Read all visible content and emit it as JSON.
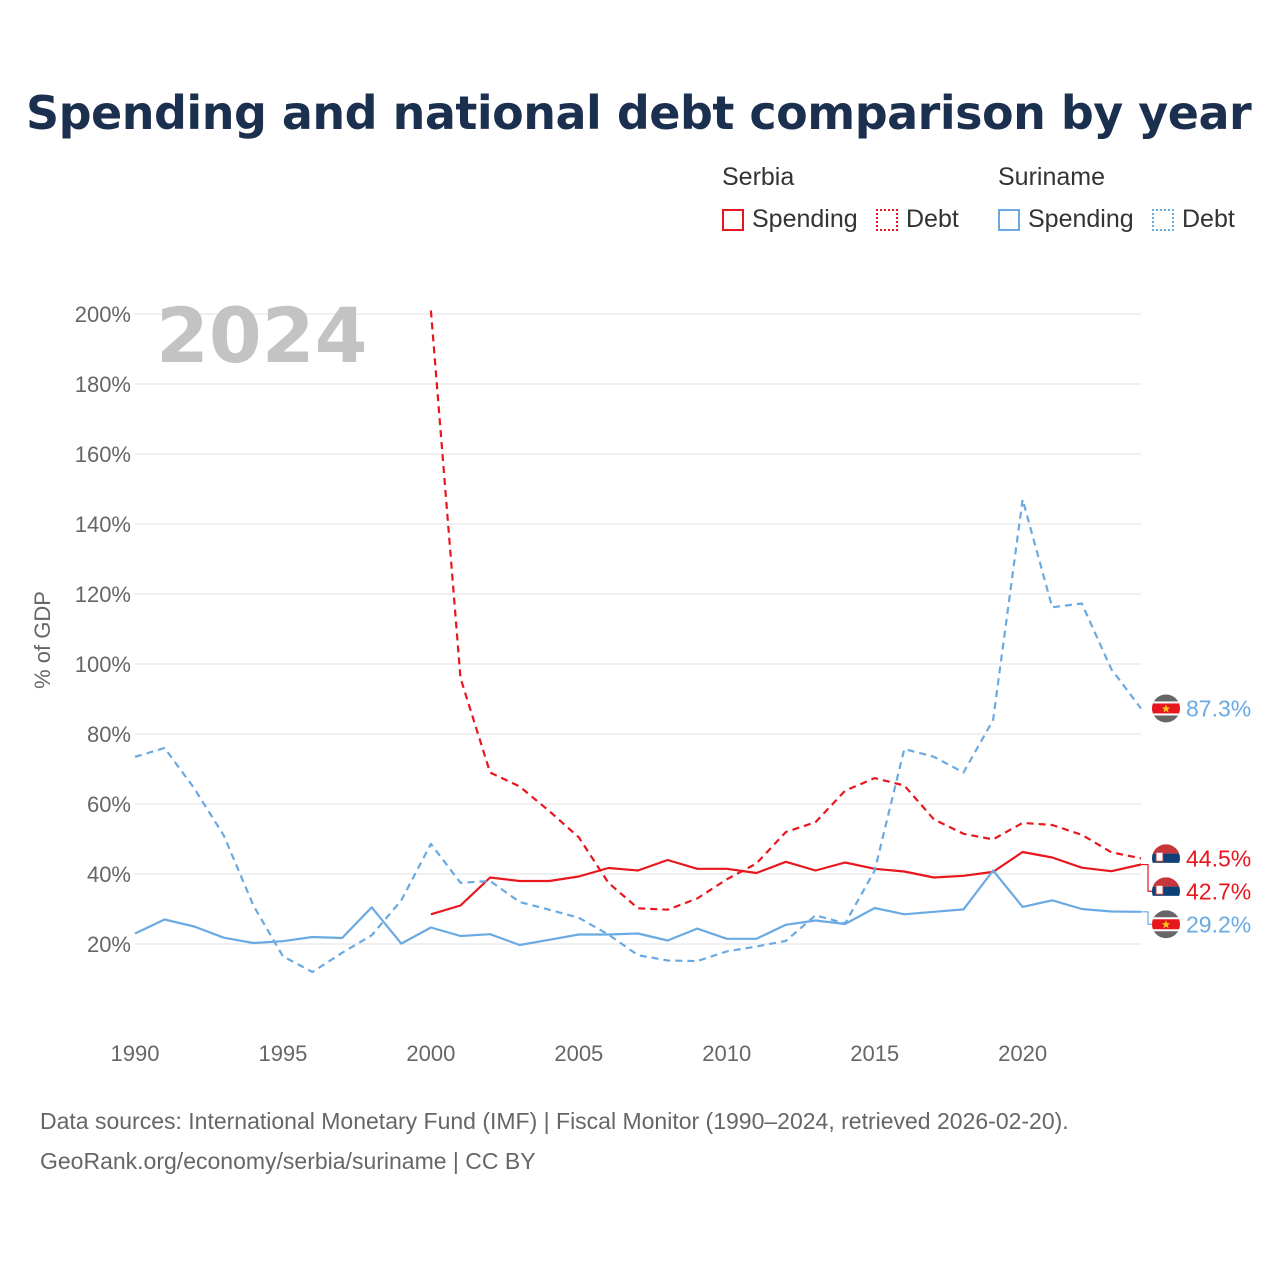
{
  "title": "Spending and national debt comparison by year",
  "legend": {
    "groups": [
      {
        "name": "Serbia",
        "items": [
          "Spending",
          "Debt"
        ]
      },
      {
        "name": "Suriname",
        "items": [
          "Spending",
          "Debt"
        ]
      }
    ]
  },
  "colors": {
    "serbia": "#e8161d",
    "suriname": "#6aaae2",
    "grid": "#e6e6e6"
  },
  "chart_data": {
    "type": "line",
    "highlight_year": "2024",
    "ylabel": "% of GDP",
    "ylim": [
      0,
      200
    ],
    "xlim": [
      1990,
      2024
    ],
    "yticks": [
      20,
      40,
      60,
      80,
      100,
      120,
      140,
      160,
      180,
      200
    ],
    "ytick_labels": [
      "20%",
      "40%",
      "60%",
      "80%",
      "100%",
      "120%",
      "140%",
      "160%",
      "180%",
      "200%"
    ],
    "xticks": [
      1990,
      1995,
      2000,
      2005,
      2010,
      2015,
      2020
    ],
    "xtick_labels": [
      "1990",
      "1995",
      "2000",
      "2005",
      "2010",
      "2015",
      "2020"
    ],
    "series": [
      {
        "name": "Serbia Spending",
        "country": "serbia",
        "dashed": false,
        "x": [
          2000,
          2001,
          2002,
          2003,
          2004,
          2005,
          2006,
          2007,
          2008,
          2009,
          2010,
          2011,
          2012,
          2013,
          2014,
          2015,
          2016,
          2017,
          2018,
          2019,
          2020,
          2021,
          2022,
          2023,
          2024
        ],
        "values": [
          28.5,
          31,
          39,
          38,
          38,
          39.3,
          41.7,
          41,
          44,
          41.5,
          41.5,
          40.3,
          43.5,
          41,
          43.3,
          41.5,
          40.7,
          39,
          39.5,
          40.6,
          46.3,
          44.7,
          41.8,
          40.8,
          42.7
        ],
        "end_label": "42.7%"
      },
      {
        "name": "Serbia Debt",
        "country": "serbia",
        "dashed": true,
        "x": [
          2000,
          2001,
          2002,
          2003,
          2004,
          2005,
          2006,
          2007,
          2008,
          2009,
          2010,
          2011,
          2012,
          2013,
          2014,
          2015,
          2016,
          2017,
          2018,
          2019,
          2020,
          2021,
          2022,
          2023,
          2024
        ],
        "values": [
          201,
          96,
          69,
          65,
          58,
          50.5,
          37.5,
          30.2,
          29.8,
          33,
          38.5,
          43,
          52,
          54.8,
          63.8,
          67.4,
          65.3,
          55.6,
          51.5,
          49.9,
          54.6,
          54,
          51.2,
          46.2,
          44.5
        ],
        "end_label": "44.5%"
      },
      {
        "name": "Suriname Spending",
        "country": "suriname",
        "dashed": false,
        "x": [
          1990,
          1991,
          1992,
          1993,
          1994,
          1995,
          1996,
          1997,
          1998,
          1999,
          2000,
          2001,
          2002,
          2003,
          2004,
          2005,
          2006,
          2007,
          2008,
          2009,
          2010,
          2011,
          2012,
          2013,
          2014,
          2015,
          2016,
          2017,
          2018,
          2019,
          2020,
          2021,
          2022,
          2023,
          2024
        ],
        "values": [
          23,
          27,
          25,
          21.8,
          20.3,
          20.8,
          22,
          21.7,
          30.5,
          20.1,
          24.7,
          22.3,
          22.8,
          19.7,
          21.2,
          22.7,
          22.7,
          23,
          21,
          24.4,
          21.5,
          21.5,
          25.5,
          26.7,
          25.7,
          30.3,
          28.5,
          29.2,
          29.9,
          41,
          30.6,
          32.5,
          30,
          29.3,
          29.2
        ],
        "end_label": "29.2%"
      },
      {
        "name": "Suriname Debt",
        "country": "suriname",
        "dashed": true,
        "x": [
          1990,
          1991,
          1992,
          1993,
          1994,
          1995,
          1996,
          1997,
          1998,
          1999,
          2000,
          2001,
          2002,
          2003,
          2004,
          2005,
          2006,
          2007,
          2008,
          2009,
          2010,
          2011,
          2012,
          2013,
          2014,
          2015,
          2016,
          2017,
          2018,
          2019,
          2020,
          2021,
          2022,
          2023,
          2024
        ],
        "values": [
          73.5,
          76,
          64.5,
          51,
          31,
          16.5,
          12,
          17.5,
          22.5,
          32.5,
          48.6,
          37.5,
          38,
          32,
          29.8,
          27.5,
          22.7,
          16.8,
          15.3,
          15.1,
          17.9,
          19.3,
          20.9,
          28.2,
          25.9,
          41,
          75.7,
          73.5,
          69,
          84,
          147,
          116.2,
          117.3,
          98.5,
          87.3
        ],
        "end_label": "87.3%"
      }
    ]
  },
  "footer": {
    "line1": "Data sources: International Monetary Fund (IMF) | Fiscal Monitor (1990–2024, retrieved 2026-02-20).",
    "line2": "GeoRank.org/economy/serbia/suriname | CC BY"
  }
}
